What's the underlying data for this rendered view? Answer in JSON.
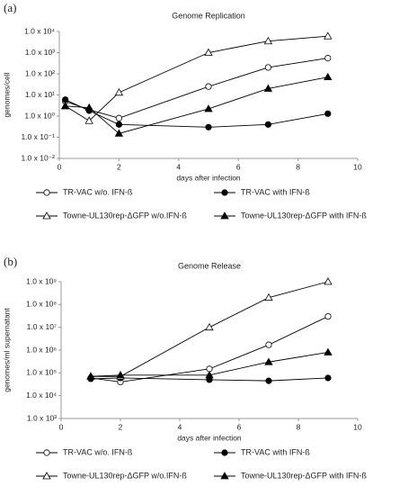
{
  "chart_data": [
    {
      "type": "line",
      "panel_label": "(a)",
      "title": "Genome Replication",
      "x_label": "days after infection",
      "y_label": "genomes/cell",
      "ylog": true,
      "xlim": [
        0,
        10
      ],
      "xticks": [
        0,
        2,
        4,
        6,
        8,
        10
      ],
      "ylim": [
        0.01,
        10000
      ],
      "yticks": [
        {
          "value": 0.01,
          "label": "1.0 x 10⁻²"
        },
        {
          "value": 0.1,
          "label": "1.0 x 10⁻¹"
        },
        {
          "value": 1,
          "label": "1.0 x 10⁰"
        },
        {
          "value": 10,
          "label": "1.0 x 10¹"
        },
        {
          "value": 100,
          "label": "1.0 x 10²"
        },
        {
          "value": 1000,
          "label": "1.0 x 10³"
        },
        {
          "value": 10000,
          "label": "1.0 x 10⁴"
        }
      ],
      "x": [
        0.2,
        1,
        2,
        5,
        7,
        9
      ],
      "series": [
        {
          "name": "TR-VAC w/o. IFN-ß",
          "color": "#000000",
          "marker": "circle",
          "filled": false,
          "values": [
            5,
            2,
            0.8,
            25,
            200,
            550
          ]
        },
        {
          "name": "TR-VAC with IFN-ß",
          "color": "#000000",
          "marker": "circle",
          "filled": true,
          "values": [
            6,
            1.8,
            0.4,
            0.3,
            0.4,
            1.3
          ]
        },
        {
          "name": "Towne-UL130rep-ΔGFP w/o.IFN-ß",
          "color": "#000000",
          "marker": "triangle",
          "filled": false,
          "values": [
            3,
            0.6,
            13,
            1000,
            3500,
            6000
          ]
        },
        {
          "name": "Towne-UL130rep-ΔGFP with IFN-ß",
          "color": "#000000",
          "marker": "triangle",
          "filled": true,
          "values": [
            3,
            2.5,
            0.15,
            2.2,
            20,
            70
          ]
        }
      ]
    },
    {
      "type": "line",
      "panel_label": "(b)",
      "title": "Genome Release",
      "x_label": "days after infection",
      "y_label": "genomes/ml supernatant",
      "ylog": true,
      "xlim": [
        0,
        10
      ],
      "xticks": [
        0,
        2,
        4,
        6,
        8,
        10
      ],
      "ylim": [
        1000,
        1000000000
      ],
      "yticks": [
        {
          "value": 1000,
          "label": "1.0 x 10³"
        },
        {
          "value": 10000,
          "label": "1.0 x 10⁴"
        },
        {
          "value": 100000,
          "label": "1.0 x 10⁵"
        },
        {
          "value": 1000000,
          "label": "1.0 x 10⁶"
        },
        {
          "value": 10000000,
          "label": "1.0 x 10⁷"
        },
        {
          "value": 100000000,
          "label": "1.0 x 10⁸"
        },
        {
          "value": 1000000000,
          "label": "1.0 x 10⁹"
        }
      ],
      "x": [
        1,
        2,
        5,
        7,
        9
      ],
      "series": [
        {
          "name": "TR-VAC w/o. IFN-ß",
          "color": "#000000",
          "marker": "circle",
          "filled": false,
          "values": [
            60000,
            40000,
            150000,
            1700000,
            30000000
          ]
        },
        {
          "name": "TR-VAC with IFN-ß",
          "color": "#000000",
          "marker": "circle",
          "filled": true,
          "values": [
            55000,
            60000,
            50000,
            45000,
            60000
          ]
        },
        {
          "name": "Towne-UL130rep-ΔGFP w/o.IFN-ß",
          "color": "#000000",
          "marker": "triangle",
          "filled": false,
          "values": [
            70000,
            70000,
            10000000,
            200000000,
            1000000000
          ]
        },
        {
          "name": "Towne-UL130rep-ΔGFP with IFN-ß",
          "color": "#000000",
          "marker": "triangle",
          "filled": true,
          "values": [
            70000,
            80000,
            80000,
            300000,
            800000
          ]
        }
      ]
    }
  ]
}
